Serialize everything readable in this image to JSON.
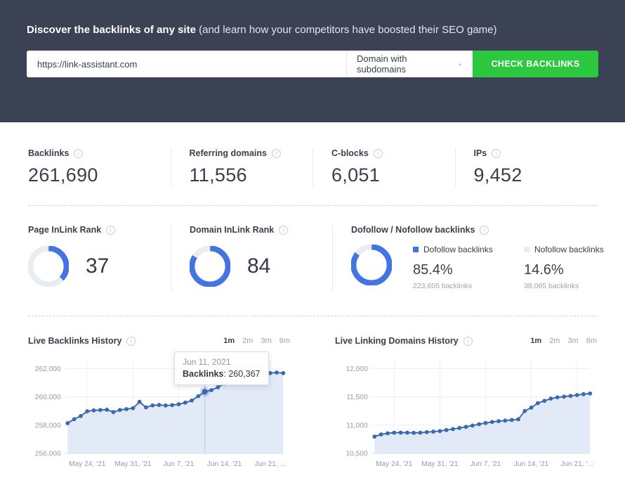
{
  "hero": {
    "heading_bold": "Discover the backlinks of any site",
    "heading_rest": "(and learn how your competitors have boosted their SEO game)",
    "url_input": {
      "value": "https://link-assistant.com"
    },
    "scope_dropdown": {
      "selected": "Domain with subdomains"
    },
    "submit_button": "CHECK BACKLINKS"
  },
  "colors": {
    "header_bg": "#3b4253",
    "accent_green": "#2bc840",
    "accent_blue": "#4374e2",
    "line_blue": "#3c69ae",
    "area_fill": "#dce6f4",
    "track_gray": "#e9edf2",
    "text_dark": "#39404d",
    "text_gray": "#9aa3ae"
  },
  "stats": [
    {
      "label": "Backlinks",
      "value": "261,690"
    },
    {
      "label": "Referring domains",
      "value": "11,556"
    },
    {
      "label": "C-blocks",
      "value": "6,051"
    },
    {
      "label": "IPs",
      "value": "9,452"
    }
  ],
  "ranks": [
    {
      "label": "Page InLink Rank",
      "value": "37",
      "percent": 37
    },
    {
      "label": "Domain InLink Rank",
      "value": "84",
      "percent": 84
    }
  ],
  "dofollow_card": {
    "label": "Dofollow / Nofollow backlinks",
    "donut_percent": 85.4,
    "legend": [
      {
        "label": "Dofollow backlinks",
        "percent": "85.4%",
        "sub": "223,605 backlinks"
      },
      {
        "label": "Nofollow backlinks",
        "percent": "14.6%",
        "sub": "38,085 backlinks"
      }
    ]
  },
  "range_options": [
    "1m",
    "2m",
    "3m",
    "6m"
  ],
  "active_range": "1m",
  "chart_data": [
    {
      "type": "area",
      "title": "Live Backlinks History",
      "ylabel": "Backlinks",
      "ylim": [
        256000,
        262600
      ],
      "grid": true,
      "yticks": [
        {
          "v": 262000,
          "label": "262,000"
        },
        {
          "v": 260000,
          "label": "260,000"
        },
        {
          "v": 258000,
          "label": "258,000"
        },
        {
          "v": 256000,
          "label": "256,000"
        }
      ],
      "xticks": [
        {
          "i": 3,
          "label": "May 24, '21"
        },
        {
          "i": 10,
          "label": "May 31, '21"
        },
        {
          "i": 17,
          "label": "Jun 7, '21"
        },
        {
          "i": 24,
          "label": "Jun 14, '21"
        },
        {
          "i": 31,
          "label": "Jun 21, ..."
        }
      ],
      "values": [
        258150,
        258430,
        258650,
        258980,
        259050,
        259080,
        259100,
        258930,
        259080,
        259140,
        259200,
        259650,
        259260,
        259400,
        259430,
        259390,
        259420,
        259480,
        259600,
        259750,
        260050,
        260367,
        260480,
        260680,
        260950,
        261250,
        261350,
        261430,
        261500,
        261570,
        261620,
        261680,
        261720,
        261680
      ],
      "highlight": {
        "index": 21,
        "tooltip_date": "Jun 11, 2021",
        "tooltip_label": "Backlinks",
        "separator": ": ",
        "tooltip_value": "260,367"
      }
    },
    {
      "type": "area",
      "title": "Live Linking Domains History",
      "ylabel": "Linking domains",
      "ylim": [
        10500,
        12150
      ],
      "grid": true,
      "yticks": [
        {
          "v": 12000,
          "label": "12,000"
        },
        {
          "v": 11500,
          "label": "11,500"
        },
        {
          "v": 11000,
          "label": "11,000"
        },
        {
          "v": 10500,
          "label": "10,500"
        }
      ],
      "xticks": [
        {
          "i": 3,
          "label": "May 24, '21"
        },
        {
          "i": 10,
          "label": "May 31, '21"
        },
        {
          "i": 17,
          "label": "Jun 7, '21"
        },
        {
          "i": 24,
          "label": "Jun 14, '21"
        },
        {
          "i": 31,
          "label": "Jun 21, '..."
        }
      ],
      "values": [
        10800,
        10838,
        10858,
        10868,
        10870,
        10870,
        10866,
        10868,
        10878,
        10888,
        10898,
        10915,
        10932,
        10952,
        10972,
        10995,
        11018,
        11040,
        11058,
        11072,
        11082,
        11092,
        11105,
        11250,
        11310,
        11390,
        11430,
        11470,
        11492,
        11505,
        11518,
        11532,
        11548,
        11560
      ],
      "highlight": null
    }
  ]
}
